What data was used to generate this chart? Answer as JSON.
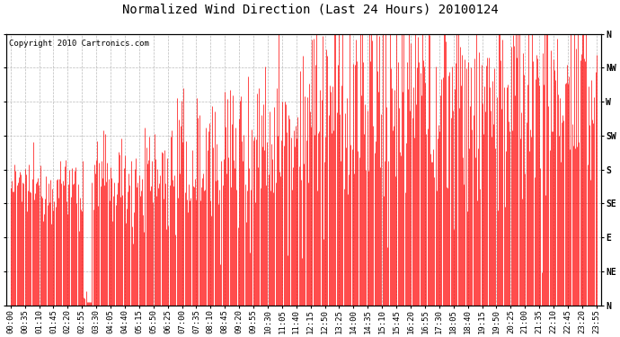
{
  "title": "Normalized Wind Direction (Last 24 Hours) 20100124",
  "copyright": "Copyright 2010 Cartronics.com",
  "line_color": "#ff0000",
  "bg_color": "#ffffff",
  "grid_color": "#bbbbbb",
  "ytick_labels": [
    "N",
    "NW",
    "W",
    "SW",
    "S",
    "SE",
    "E",
    "NE",
    "N"
  ],
  "ytick_values": [
    8,
    7,
    6,
    5,
    4,
    3,
    2,
    1,
    0
  ],
  "xtick_labels": [
    "00:00",
    "00:35",
    "01:10",
    "01:45",
    "02:20",
    "02:55",
    "03:30",
    "04:05",
    "04:40",
    "05:15",
    "05:50",
    "06:25",
    "07:00",
    "07:35",
    "08:10",
    "08:45",
    "09:20",
    "09:55",
    "10:30",
    "11:05",
    "11:40",
    "12:15",
    "12:50",
    "13:25",
    "14:00",
    "14:35",
    "15:10",
    "15:45",
    "16:20",
    "16:55",
    "17:30",
    "18:05",
    "18:40",
    "19:15",
    "19:50",
    "20:25",
    "21:00",
    "21:35",
    "22:10",
    "22:45",
    "23:20",
    "23:55"
  ],
  "ylim": [
    0,
    8
  ],
  "title_fontsize": 10,
  "axis_fontsize": 6.5,
  "copyright_fontsize": 6.5,
  "n_points": 576
}
